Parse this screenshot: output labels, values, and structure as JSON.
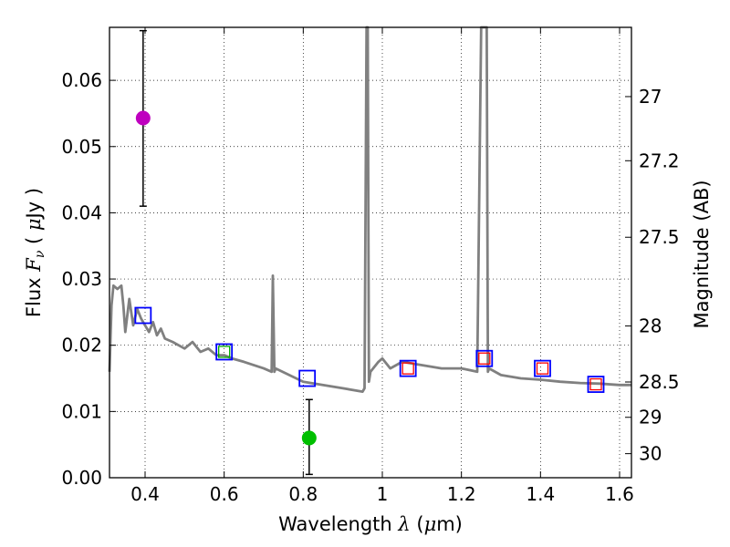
{
  "chart_data": {
    "type": "scatter",
    "xlabel_text": "Wavelength  ",
    "xlabel_symbol": "λ",
    "xlabel_unit_open": " (",
    "xlabel_unit_mu": "μ",
    "xlabel_unit_close": "m)",
    "ylabel_text": "Flux  ",
    "ylabel_symbol": "F",
    "ylabel_sub": "ν",
    "ylabel_unit_open": "  (  ",
    "ylabel_unit_mu": "μ",
    "ylabel_unit_close": "Jy )",
    "y2label": "Magnitude (AB)",
    "xlim": [
      0.31,
      1.63
    ],
    "ylim": [
      0.0,
      0.068
    ],
    "grid": true,
    "x_ticks": [
      "0.4",
      "0.6",
      "0.8",
      "1",
      "1.2",
      "1.4",
      "1.6"
    ],
    "y_ticks": [
      "0.00",
      "0.01",
      "0.02",
      "0.03",
      "0.04",
      "0.05",
      "0.06"
    ],
    "y2_ticks": [
      "27",
      "27.2",
      "27.5",
      "28",
      "28.5",
      "29",
      "30"
    ],
    "series": [
      {
        "name": "model-spectrum",
        "color": "#808080",
        "x": [
          0.31,
          0.315,
          0.32,
          0.33,
          0.34,
          0.345,
          0.35,
          0.36,
          0.37,
          0.38,
          0.39,
          0.4,
          0.41,
          0.42,
          0.43,
          0.44,
          0.45,
          0.47,
          0.5,
          0.52,
          0.54,
          0.56,
          0.58,
          0.6,
          0.62,
          0.65,
          0.7,
          0.72,
          0.723,
          0.727,
          0.73,
          0.8,
          0.9,
          0.95,
          0.955,
          0.96,
          0.963,
          0.966,
          0.97,
          0.99,
          1.0,
          1.02,
          1.05,
          1.1,
          1.15,
          1.2,
          1.24,
          1.25,
          1.253,
          1.256,
          1.264,
          1.267,
          1.27,
          1.3,
          1.35,
          1.4,
          1.45,
          1.5,
          1.55,
          1.6,
          1.63
        ],
        "y": [
          0.016,
          0.026,
          0.029,
          0.0285,
          0.029,
          0.026,
          0.022,
          0.027,
          0.023,
          0.0255,
          0.024,
          0.023,
          0.022,
          0.0235,
          0.0215,
          0.0225,
          0.021,
          0.0205,
          0.0195,
          0.0205,
          0.019,
          0.0195,
          0.0185,
          0.0185,
          0.018,
          0.0175,
          0.0165,
          0.016,
          0.0305,
          0.016,
          0.0165,
          0.0145,
          0.0135,
          0.013,
          0.0135,
          0.068,
          0.068,
          0.0145,
          0.016,
          0.0175,
          0.018,
          0.0165,
          0.0175,
          0.017,
          0.0165,
          0.0165,
          0.016,
          0.068,
          0.068,
          0.068,
          0.068,
          0.016,
          0.0165,
          0.0155,
          0.015,
          0.0148,
          0.0145,
          0.0143,
          0.0142,
          0.014,
          0.014
        ]
      },
      {
        "name": "magenta-point",
        "color": "#bf00bf",
        "points": [
          {
            "x": 0.395,
            "y": 0.0543,
            "ylo": 0.041,
            "yhi": 0.0675
          }
        ]
      },
      {
        "name": "green-point",
        "color": "#00bf00",
        "points": [
          {
            "x": 0.815,
            "y": 0.006,
            "ylo": 0.0005,
            "yhi": 0.0118
          }
        ]
      },
      {
        "name": "blue-squares",
        "color": "#0000ff",
        "points": [
          {
            "x": 0.395,
            "y": 0.0245
          },
          {
            "x": 0.6,
            "y": 0.019
          },
          {
            "x": 0.81,
            "y": 0.015
          },
          {
            "x": 1.065,
            "y": 0.0165
          },
          {
            "x": 1.258,
            "y": 0.018
          },
          {
            "x": 1.405,
            "y": 0.0165
          },
          {
            "x": 1.54,
            "y": 0.0141
          }
        ]
      },
      {
        "name": "inner-red-squares",
        "color": "#ff0000",
        "points": [
          {
            "x": 1.065,
            "y": 0.0165
          },
          {
            "x": 1.258,
            "y": 0.018
          },
          {
            "x": 1.405,
            "y": 0.0165
          },
          {
            "x": 1.54,
            "y": 0.0141
          }
        ]
      },
      {
        "name": "inner-green-square",
        "color": "#00aa00",
        "points": [
          {
            "x": 0.6,
            "y": 0.019
          }
        ]
      }
    ]
  }
}
